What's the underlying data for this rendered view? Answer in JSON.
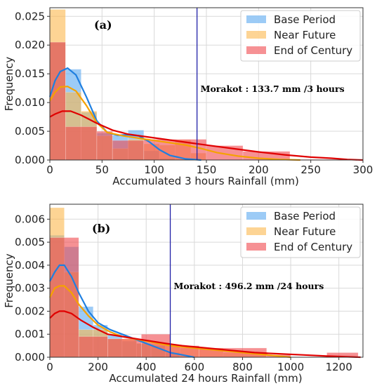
{
  "chart_data": [
    {
      "type": "bar",
      "panel_label": "(a)",
      "xlabel": "Accumulated 3 hours Rainfall (mm)",
      "ylabel": "Frequency",
      "xlim": [
        0,
        300
      ],
      "ylim": [
        0,
        0.0265
      ],
      "xticks": [
        0,
        50,
        100,
        150,
        200,
        250,
        300
      ],
      "yticks": [
        0.0,
        0.005,
        0.01,
        0.015,
        0.02,
        0.025
      ],
      "ytick_labels": [
        "0.000",
        "0.005",
        "0.010",
        "0.015",
        "0.020",
        "0.025"
      ],
      "grid": true,
      "legend_position": "top-right",
      "annotation": {
        "text": "Morakot : 133.7 mm /3 hours",
        "x": 141
      },
      "series": [
        {
          "name": "Base Period",
          "color": "#5aa9f0",
          "line_color": "#1f7fe0",
          "bins": [
            [
              0,
              15,
              0.0205
            ],
            [
              15,
              30,
              0.0158
            ],
            [
              30,
              45,
              0.0083
            ],
            [
              45,
              60,
              0.0047
            ],
            [
              60,
              75,
              0.0043
            ],
            [
              75,
              90,
              0.0052
            ],
            [
              90,
              105,
              0.0016
            ],
            [
              105,
              120,
              0.0003
            ]
          ],
          "kde": [
            [
              0,
              0.011
            ],
            [
              5,
              0.0138
            ],
            [
              10,
              0.0154
            ],
            [
              17,
              0.016
            ],
            [
              25,
              0.0148
            ],
            [
              35,
              0.011
            ],
            [
              45,
              0.0068
            ],
            [
              55,
              0.0048
            ],
            [
              65,
              0.0043
            ],
            [
              75,
              0.0044
            ],
            [
              85,
              0.0042
            ],
            [
              95,
              0.0032
            ],
            [
              105,
              0.0018
            ],
            [
              115,
              0.0008
            ],
            [
              130,
              0.0002
            ],
            [
              145,
              0.0
            ]
          ]
        },
        {
          "name": "Near Future",
          "color": "#fbb84d",
          "line_color": "#f5a200",
          "bins": [
            [
              0,
              15,
              0.0262
            ],
            [
              15,
              30,
              0.0118
            ],
            [
              30,
              45,
              0.0085
            ],
            [
              45,
              60,
              0.0042
            ],
            [
              60,
              75,
              0.002
            ],
            [
              75,
              90,
              0.0036
            ],
            [
              90,
              105,
              0.0028
            ],
            [
              105,
              120,
              0.0026
            ],
            [
              120,
              135,
              0.0035
            ],
            [
              135,
              150,
              0.0012
            ]
          ],
          "kde": [
            [
              0,
              0.0103
            ],
            [
              5,
              0.0118
            ],
            [
              10,
              0.0127
            ],
            [
              17,
              0.0128
            ],
            [
              25,
              0.012
            ],
            [
              35,
              0.0095
            ],
            [
              45,
              0.0065
            ],
            [
              55,
              0.0048
            ],
            [
              70,
              0.0042
            ],
            [
              85,
              0.0038
            ],
            [
              100,
              0.0034
            ],
            [
              115,
              0.003
            ],
            [
              130,
              0.0026
            ],
            [
              145,
              0.002
            ],
            [
              160,
              0.0013
            ],
            [
              180,
              0.0007
            ],
            [
              200,
              0.0003
            ],
            [
              220,
              0.0001
            ],
            [
              240,
              0.0
            ]
          ]
        },
        {
          "name": "End of Century",
          "color": "#f0474d",
          "line_color": "#e00000",
          "bins": [
            [
              0,
              15,
              0.0205
            ],
            [
              15,
              45,
              0.0058
            ],
            [
              45,
              60,
              0.005
            ],
            [
              60,
              90,
              0.0034
            ],
            [
              90,
              150,
              0.0036
            ],
            [
              150,
              185,
              0.0025
            ],
            [
              185,
              230,
              0.0015
            ],
            [
              230,
              300,
              0.0001
            ]
          ],
          "kde": [
            [
              0,
              0.0075
            ],
            [
              5,
              0.008
            ],
            [
              12,
              0.0085
            ],
            [
              20,
              0.0085
            ],
            [
              30,
              0.0078
            ],
            [
              45,
              0.0064
            ],
            [
              60,
              0.0052
            ],
            [
              75,
              0.0045
            ],
            [
              90,
              0.0041
            ],
            [
              110,
              0.0036
            ],
            [
              130,
              0.0031
            ],
            [
              150,
              0.0026
            ],
            [
              175,
              0.002
            ],
            [
              200,
              0.0014
            ],
            [
              225,
              0.0009
            ],
            [
              250,
              0.0005
            ],
            [
              270,
              0.0003
            ],
            [
              285,
              0.0001
            ],
            [
              300,
              0.0
            ]
          ]
        }
      ]
    },
    {
      "type": "bar",
      "panel_label": "(b)",
      "xlabel": "Accumulated 24 hours Rainfall (mm)",
      "ylabel": "Frequency",
      "xlim": [
        0,
        1300
      ],
      "ylim": [
        0,
        0.00665
      ],
      "xticks": [
        0,
        200,
        400,
        600,
        800,
        1000,
        1200
      ],
      "yticks": [
        0.0,
        0.001,
        0.002,
        0.003,
        0.004,
        0.005,
        0.006
      ],
      "ytick_labels": [
        "0.000",
        "0.001",
        "0.002",
        "0.003",
        "0.004",
        "0.005",
        "0.006"
      ],
      "grid": true,
      "legend_position": "top-right",
      "annotation": {
        "text": "Morakot : 496.2 mm /24 hours",
        "x": 500
      },
      "series": [
        {
          "name": "Base Period",
          "color": "#5aa9f0",
          "line_color": "#1f7fe0",
          "bins": [
            [
              0,
              60,
              0.0053
            ],
            [
              60,
              120,
              0.0048
            ],
            [
              120,
              180,
              0.0022
            ],
            [
              180,
              240,
              0.0014
            ],
            [
              240,
              300,
              0.001
            ],
            [
              300,
              360,
              0.0007
            ],
            [
              360,
              420,
              0.0006
            ],
            [
              420,
              480,
              0.0005
            ],
            [
              480,
              540,
              0.0002
            ]
          ],
          "kde": [
            [
              0,
              0.0033
            ],
            [
              20,
              0.0037
            ],
            [
              40,
              0.004
            ],
            [
              60,
              0.004
            ],
            [
              90,
              0.0035
            ],
            [
              120,
              0.0028
            ],
            [
              160,
              0.002
            ],
            [
              200,
              0.0015
            ],
            [
              250,
              0.0012
            ],
            [
              300,
              0.001
            ],
            [
              350,
              0.0008
            ],
            [
              400,
              0.0006
            ],
            [
              450,
              0.0004
            ],
            [
              500,
              0.0002
            ],
            [
              550,
              0.0001
            ],
            [
              600,
              0.0
            ]
          ]
        },
        {
          "name": "Near Future",
          "color": "#fbb84d",
          "line_color": "#f5a200",
          "bins": [
            [
              0,
              60,
              0.0065
            ],
            [
              60,
              120,
              0.0037
            ],
            [
              120,
              180,
              0.0012
            ],
            [
              180,
              240,
              0.0012
            ],
            [
              240,
              300,
              0.0008
            ],
            [
              300,
              360,
              0.0008
            ],
            [
              360,
              420,
              0.0006
            ],
            [
              420,
              480,
              0.0006
            ],
            [
              480,
              540,
              0.0005
            ],
            [
              540,
              600,
              0.0004
            ],
            [
              600,
              720,
              0.0004
            ],
            [
              720,
              900,
              0.0002
            ]
          ],
          "kde": [
            [
              0,
              0.0026
            ],
            [
              20,
              0.003
            ],
            [
              40,
              0.0031
            ],
            [
              60,
              0.0031
            ],
            [
              90,
              0.0028
            ],
            [
              120,
              0.0023
            ],
            [
              160,
              0.0018
            ],
            [
              200,
              0.0014
            ],
            [
              250,
              0.0011
            ],
            [
              300,
              0.0009
            ],
            [
              350,
              0.0008
            ],
            [
              400,
              0.0007
            ],
            [
              450,
              0.0006
            ],
            [
              500,
              0.0005
            ],
            [
              600,
              0.0004
            ],
            [
              700,
              0.0003
            ],
            [
              800,
              0.0002
            ],
            [
              900,
              0.0001
            ],
            [
              1000,
              0.0
            ]
          ]
        },
        {
          "name": "End of Century",
          "color": "#f0474d",
          "line_color": "#e00000",
          "bins": [
            [
              0,
              120,
              0.0052
            ],
            [
              120,
              240,
              0.0009
            ],
            [
              240,
              380,
              0.0008
            ],
            [
              380,
              500,
              0.001
            ],
            [
              500,
              620,
              0.0005
            ],
            [
              620,
              900,
              0.0004
            ],
            [
              900,
              1000,
              0.0001
            ],
            [
              1150,
              1280,
              0.0002
            ]
          ],
          "kde": [
            [
              0,
              0.0017
            ],
            [
              20,
              0.0019
            ],
            [
              40,
              0.002
            ],
            [
              60,
              0.002
            ],
            [
              90,
              0.0019
            ],
            [
              130,
              0.0016
            ],
            [
              180,
              0.0013
            ],
            [
              240,
              0.001
            ],
            [
              300,
              0.0009
            ],
            [
              360,
              0.0008
            ],
            [
              420,
              0.0007
            ],
            [
              480,
              0.0006
            ],
            [
              550,
              0.0005
            ],
            [
              650,
              0.0004
            ],
            [
              750,
              0.0003
            ],
            [
              850,
              0.0002
            ],
            [
              950,
              0.00015
            ],
            [
              1050,
              0.0001
            ],
            [
              1150,
              5e-05
            ],
            [
              1290,
              0.0
            ]
          ]
        }
      ]
    }
  ]
}
